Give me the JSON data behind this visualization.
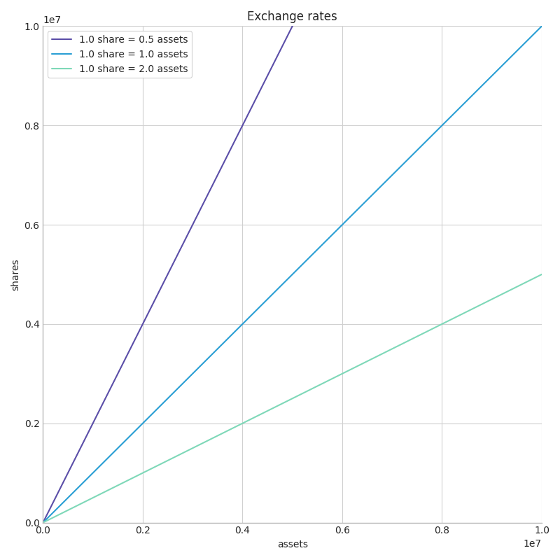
{
  "title": "Exchange rates",
  "xlabel": "assets",
  "ylabel": "shares",
  "xlim": [
    0,
    10000000.0
  ],
  "ylim": [
    0,
    10000000.0
  ],
  "lines": [
    {
      "rate": 2.0,
      "label": "1.0 share = 0.5 assets",
      "color": "#5b4ea8"
    },
    {
      "rate": 1.0,
      "label": "1.0 share = 1.0 assets",
      "color": "#2b9fd4"
    },
    {
      "rate": 0.5,
      "label": "1.0 share = 2.0 assets",
      "color": "#7ed8b8"
    }
  ],
  "figsize": [
    8,
    8
  ],
  "dpi": 100,
  "background_color": "#ffffff",
  "grid_color": "#d0d0d0",
  "linewidth": 1.5
}
